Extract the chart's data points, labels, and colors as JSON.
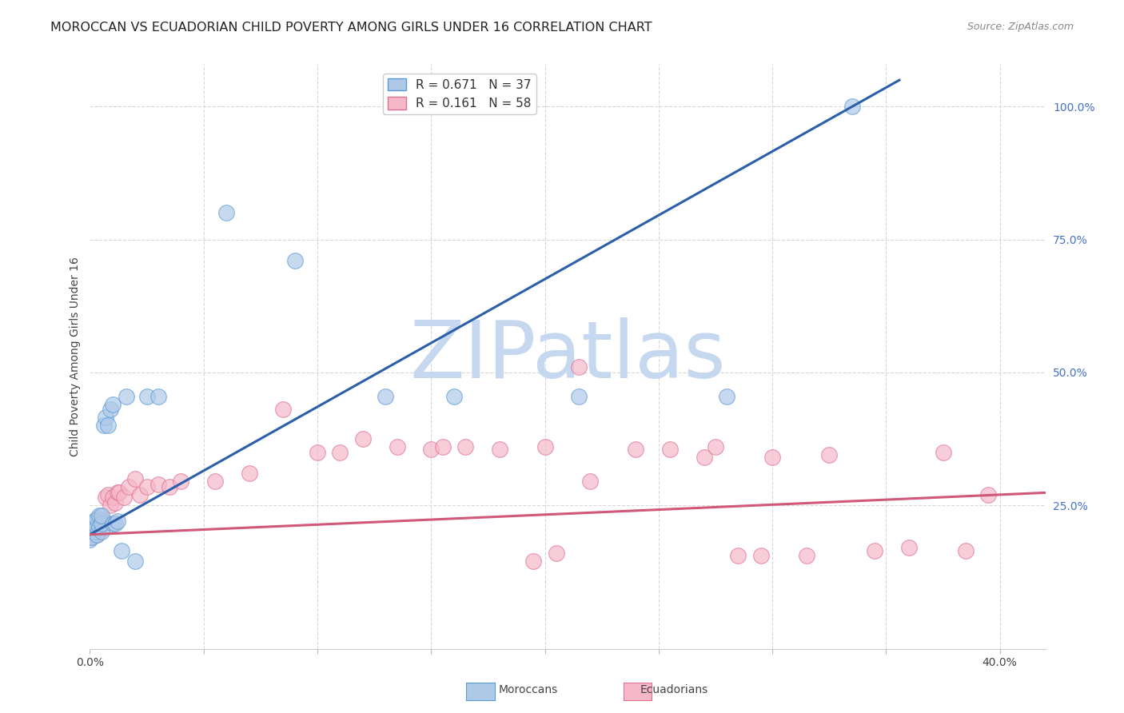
{
  "title": "MOROCCAN VS ECUADORIAN CHILD POVERTY AMONG GIRLS UNDER 16 CORRELATION CHART",
  "source": "Source: ZipAtlas.com",
  "ylabel": "Child Poverty Among Girls Under 16",
  "xlim": [
    0.0,
    0.42
  ],
  "ylim": [
    -0.02,
    1.08
  ],
  "plot_ylim": [
    0.0,
    1.05
  ],
  "moroccan_color": "#aec9e8",
  "ecuadorian_color": "#f5b8cb",
  "moroccan_edge_color": "#5b9bd5",
  "ecuadorian_edge_color": "#e07090",
  "moroccan_line_color": "#2b5faa",
  "ecuadorian_line_color": "#d05878",
  "moroccan_R": 0.671,
  "moroccan_N": 37,
  "ecuadorian_R": 0.161,
  "ecuadorian_N": 58,
  "moroccan_line_x0": 0.0,
  "moroccan_line_y0": 0.195,
  "moroccan_line_x1": 0.335,
  "moroccan_line_y1": 1.0,
  "ecuadorian_line_x0": 0.0,
  "ecuadorian_line_y0": 0.195,
  "ecuadorian_line_x1": 0.4,
  "ecuadorian_line_y1": 0.27,
  "background_color": "#ffffff",
  "grid_color": "#d8d8d8",
  "watermark": "ZIPatlas",
  "watermark_color": "#c5d8ef",
  "moroccan_x": [
    0.0,
    0.0,
    0.0,
    0.001,
    0.001,
    0.001,
    0.002,
    0.002,
    0.002,
    0.003,
    0.003,
    0.003,
    0.004,
    0.004,
    0.005,
    0.005,
    0.005,
    0.006,
    0.007,
    0.008,
    0.009,
    0.01,
    0.01,
    0.011,
    0.012,
    0.014,
    0.016,
    0.02,
    0.025,
    0.03,
    0.06,
    0.09,
    0.13,
    0.16,
    0.215,
    0.28,
    0.335
  ],
  "moroccan_y": [
    0.195,
    0.205,
    0.185,
    0.2,
    0.215,
    0.19,
    0.2,
    0.215,
    0.22,
    0.195,
    0.21,
    0.225,
    0.21,
    0.23,
    0.2,
    0.215,
    0.23,
    0.4,
    0.415,
    0.4,
    0.43,
    0.215,
    0.44,
    0.215,
    0.22,
    0.165,
    0.455,
    0.145,
    0.455,
    0.455,
    0.8,
    0.71,
    0.455,
    0.455,
    0.455,
    0.455,
    1.0
  ],
  "ecuadorian_x": [
    0.0,
    0.001,
    0.001,
    0.002,
    0.002,
    0.003,
    0.003,
    0.003,
    0.004,
    0.004,
    0.005,
    0.005,
    0.006,
    0.007,
    0.008,
    0.009,
    0.01,
    0.011,
    0.012,
    0.013,
    0.015,
    0.017,
    0.02,
    0.022,
    0.025,
    0.03,
    0.035,
    0.04,
    0.055,
    0.07,
    0.085,
    0.1,
    0.11,
    0.12,
    0.135,
    0.15,
    0.155,
    0.165,
    0.18,
    0.195,
    0.205,
    0.215,
    0.24,
    0.255,
    0.27,
    0.285,
    0.295,
    0.315,
    0.325,
    0.345,
    0.36,
    0.375,
    0.385,
    0.395,
    0.2,
    0.22,
    0.275,
    0.3
  ],
  "ecuadorian_y": [
    0.19,
    0.205,
    0.215,
    0.205,
    0.22,
    0.195,
    0.21,
    0.22,
    0.215,
    0.225,
    0.205,
    0.22,
    0.22,
    0.265,
    0.27,
    0.25,
    0.265,
    0.255,
    0.275,
    0.275,
    0.265,
    0.285,
    0.3,
    0.27,
    0.285,
    0.29,
    0.285,
    0.295,
    0.295,
    0.31,
    0.43,
    0.35,
    0.35,
    0.375,
    0.36,
    0.355,
    0.36,
    0.36,
    0.355,
    0.145,
    0.16,
    0.51,
    0.355,
    0.355,
    0.34,
    0.155,
    0.155,
    0.155,
    0.345,
    0.165,
    0.17,
    0.35,
    0.165,
    0.27,
    0.36,
    0.295,
    0.36,
    0.34
  ]
}
